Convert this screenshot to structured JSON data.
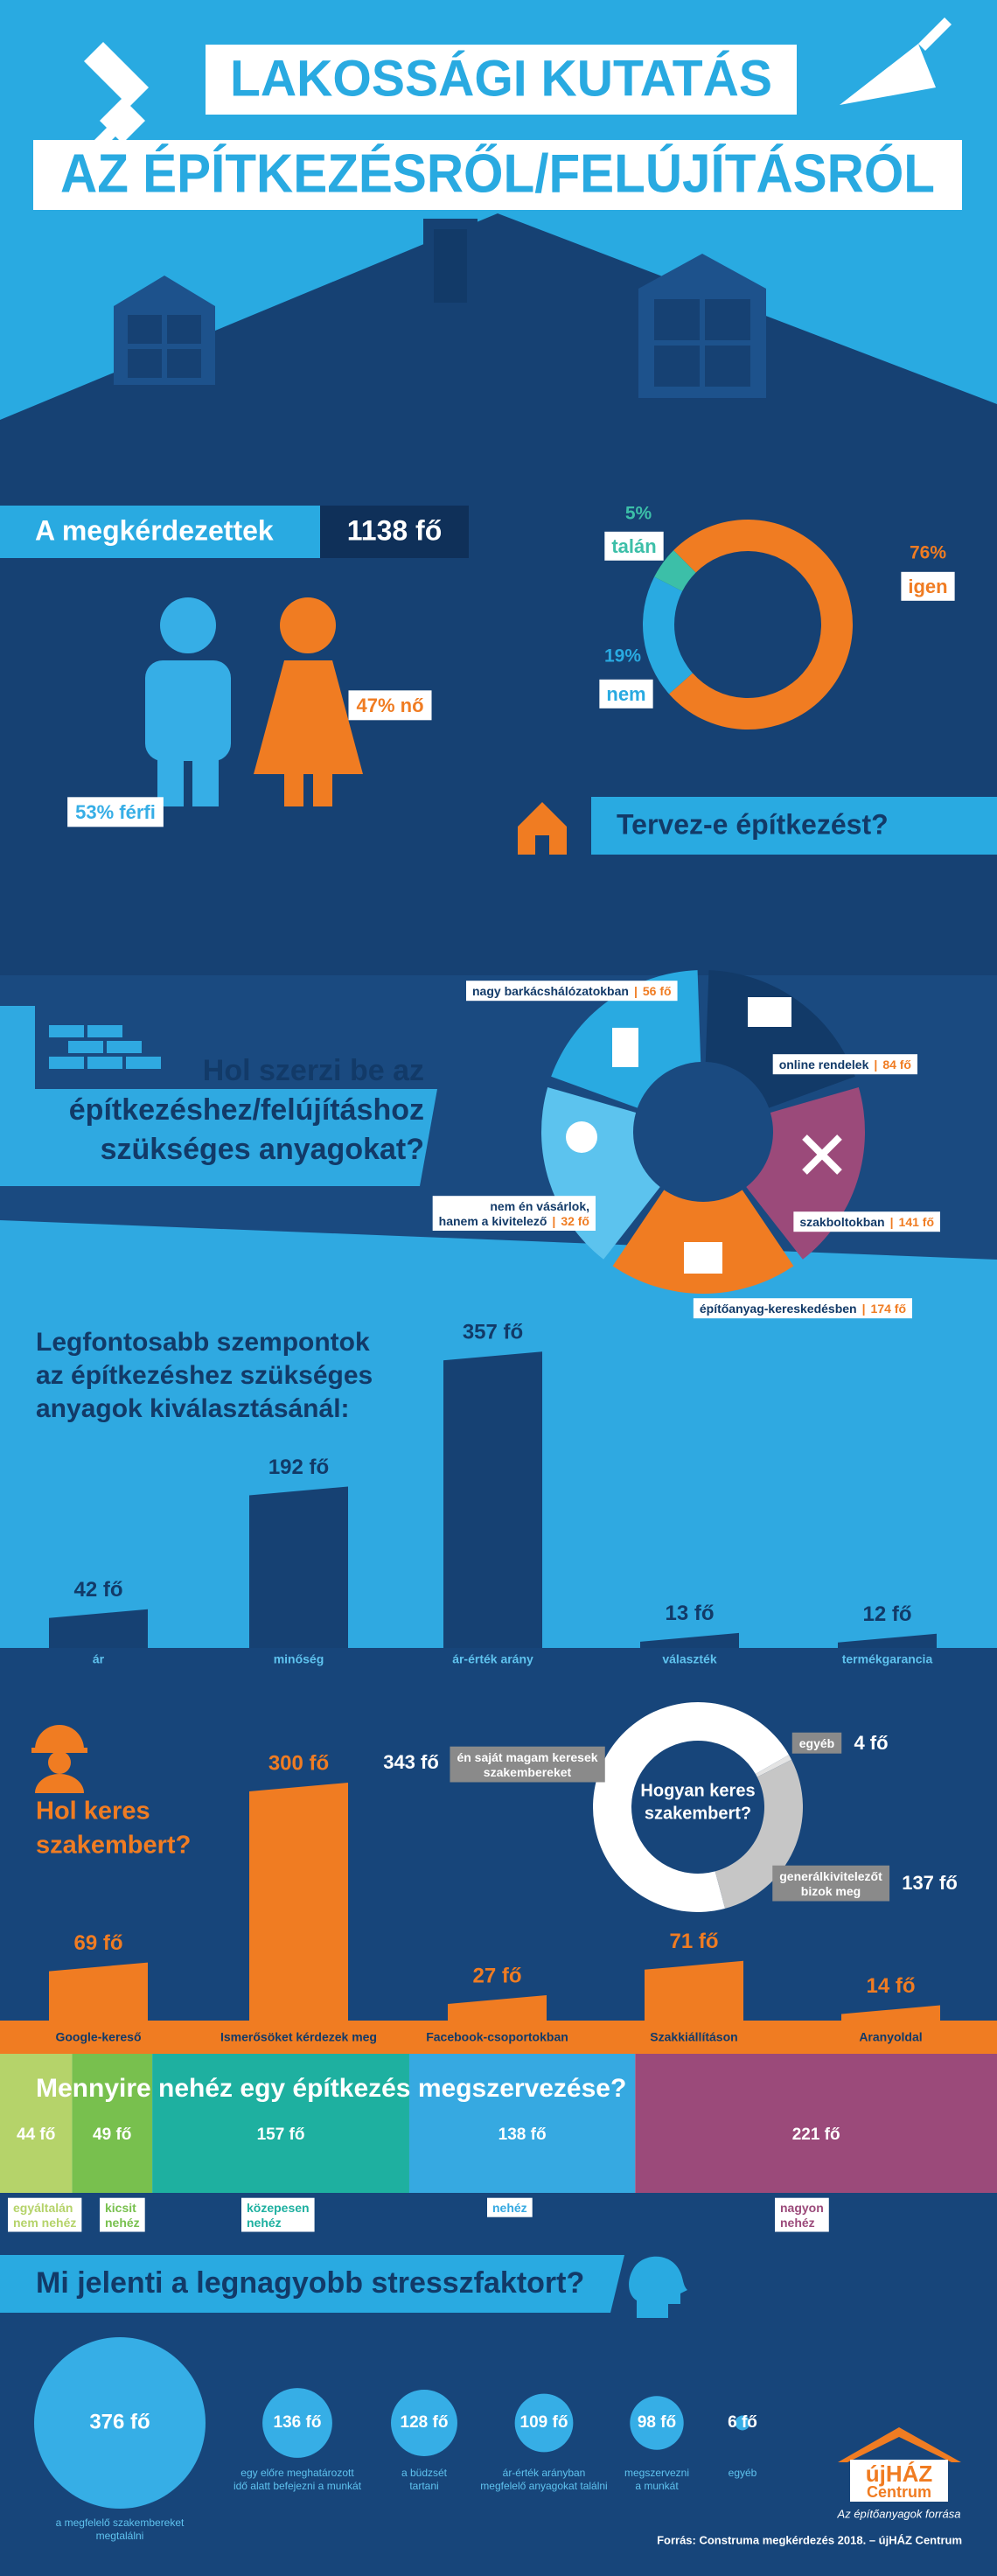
{
  "header": {
    "title": [
      "LAKOSSÁGI KUTATÁS",
      "AZ ÉPÍTKEZÉSRŐL/FELÚJÍTÁSRÓL"
    ]
  },
  "respondents": {
    "label": "A megkérdezettek",
    "total": "1138 fő",
    "female": "47% nő",
    "male": "53% férfi"
  },
  "plan": {
    "question": "Tervez-e építkezést?",
    "chart_data": {
      "type": "pie",
      "categories": [
        "igen",
        "nem",
        "talán"
      ],
      "values": [
        76,
        19,
        5
      ],
      "value_labels": [
        "76%",
        "19%",
        "5%"
      ],
      "colors": [
        "#f07c22",
        "#29aae1",
        "#3cbfa8"
      ]
    }
  },
  "sources": {
    "question": [
      "Hol szerzi be az",
      "építkezéshez/felújításhoz",
      "szükséges anyagokat?"
    ],
    "separator": "|",
    "items": [
      {
        "name": [
          "nagy barkácshálózatokban"
        ],
        "value": "56 fő",
        "color": "#29aae1"
      },
      {
        "name": [
          "online rendelek"
        ],
        "value": "84 fő",
        "color": "#123a68"
      },
      {
        "name": [
          "szakboltokban"
        ],
        "value": "141 fő",
        "color": "#9b4a7a"
      },
      {
        "name": [
          "építőanyag-kereskedésben"
        ],
        "value": "174 fő",
        "color": "#f07c22"
      },
      {
        "name": [
          "nem én vásárlok,",
          "hanem a kivitelező"
        ],
        "value": "32 fő",
        "color": "#5cc3ee"
      }
    ]
  },
  "criteria": {
    "heading": [
      "Legfontosabb szempontok",
      "az építkezéshez szükséges",
      "anyagok kiválasztásánál:"
    ],
    "chart_data": {
      "type": "bar",
      "categories": [
        "ár",
        "minőség",
        "ár-érték arány",
        "választék",
        "termékgarancia"
      ],
      "values": [
        42,
        192,
        357,
        13,
        12
      ],
      "value_labels": [
        "42 fő",
        "192 fő",
        "357 fő",
        "13 fő",
        "12 fő"
      ],
      "color": "#164173"
    }
  },
  "experts": {
    "heading": [
      "Hol keres",
      "szakembert?"
    ],
    "chart_data": {
      "type": "bar",
      "categories": [
        "Google-kereső",
        "Ismerősöket kérdezek meg",
        "Facebook-csoportokban",
        "Szakkiállításon",
        "Aranyoldal"
      ],
      "values": [
        69,
        300,
        27,
        71,
        14
      ],
      "value_labels": [
        "69 fő",
        "300 fő",
        "27 fő",
        "71 fő",
        "14 fő"
      ],
      "color": "#f07c22"
    },
    "how": {
      "chart_data": {
        "type": "pie",
        "title": [
          "Hogyan keres",
          "szakembert?"
        ],
        "categories": [
          [
            "én saját magam keresek",
            "szakembereket"
          ],
          [
            "egyéb"
          ],
          [
            "generálkivitelezőt",
            "bizok meg"
          ]
        ],
        "values": [
          343,
          4,
          137
        ],
        "value_labels": [
          "343 fő",
          "4 fő",
          "137 fő"
        ],
        "colors": [
          "#ffffff",
          "#e4e4e4",
          "#c6c6c6"
        ]
      }
    }
  },
  "difficulty": {
    "question": "Mennyire nehéz egy építkezés megszervezése?",
    "chart_data": {
      "type": "stacked_bar",
      "categories": [
        [
          "egyáltalán",
          "nem nehéz"
        ],
        [
          "kicsit",
          "nehéz"
        ],
        [
          "közepesen",
          "nehéz"
        ],
        [
          "nehéz"
        ],
        [
          "nagyon",
          "nehéz"
        ]
      ],
      "values": [
        44,
        49,
        157,
        138,
        221
      ],
      "value_labels": [
        "44 fő",
        "49 fő",
        "157 fő",
        "138 fő",
        "221 fő"
      ],
      "colors": [
        "#b5d36a",
        "#78c04e",
        "#1eb0a0",
        "#36a9e1",
        "#9b4a7a"
      ]
    }
  },
  "stress": {
    "question": "Mi jelenti a legnagyobb stresszfaktort?",
    "chart_data": {
      "type": "bubble",
      "categories": [
        [
          "a megfelelő szakembereket",
          "megtalálni"
        ],
        [
          "egy előre meghatározott",
          "idő alatt befejezni a munkát"
        ],
        [
          "a büdzsét",
          "tartani"
        ],
        [
          "ár-érték arányban",
          "megfelelő anyagokat találni"
        ],
        [
          "megszervezni",
          "a munkát"
        ],
        [
          "egyéb"
        ]
      ],
      "values": [
        376,
        136,
        128,
        109,
        98,
        6
      ],
      "value_labels": [
        "376 fő",
        "136 fő",
        "128 fő",
        "109 fő",
        "98 fő",
        "6 fő"
      ],
      "color": "#36aee6"
    }
  },
  "footer": {
    "logo": [
      "újHÁZ",
      "Centrum"
    ],
    "slogan": "Az építőanyagok forrása",
    "source": "Forrás: Construma megkérdezés 2018. – újHÁZ Centrum"
  }
}
